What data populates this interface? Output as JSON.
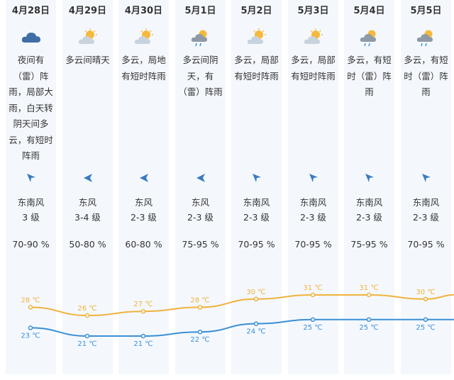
{
  "days": [
    {
      "date": "4月28日",
      "icon": "thunder-cloud-icon",
      "desc": "夜间有（雷）阵雨，局部大雨，白天转阴天间多云，有短时阵雨",
      "wind_dir": "东南风",
      "wind_level": "3 级",
      "humidity": "70-90 %",
      "high": "28 ℃",
      "low": "23 ℃"
    },
    {
      "date": "4月29日",
      "icon": "partly-cloudy-icon",
      "desc": "多云间晴天",
      "wind_dir": "东风",
      "wind_level": "3-4 级",
      "humidity": "50-80 %",
      "high": "26 ℃",
      "low": "21 ℃"
    },
    {
      "date": "4月30日",
      "icon": "partly-cloudy-icon",
      "desc": "多云，局地有短时阵雨",
      "wind_dir": "东风",
      "wind_level": "2-3 级",
      "humidity": "60-80 %",
      "high": "27 ℃",
      "low": "21 ℃"
    },
    {
      "date": "5月1日",
      "icon": "thunder-shower-icon",
      "desc": "多云间阴天，有（雷）阵雨",
      "wind_dir": "东风",
      "wind_level": "2-3 级",
      "humidity": "75-95 %",
      "high": "28 ℃",
      "low": "22 ℃"
    },
    {
      "date": "5月2日",
      "icon": "partly-cloudy-icon",
      "desc": "多云，局部有短时阵雨",
      "wind_dir": "东南风",
      "wind_level": "2-3 级",
      "humidity": "70-95 %",
      "high": "30 ℃",
      "low": "24 ℃"
    },
    {
      "date": "5月3日",
      "icon": "partly-cloudy-icon",
      "desc": "多云，局部有短时阵雨",
      "wind_dir": "东南风",
      "wind_level": "2-3 级",
      "humidity": "70-95 %",
      "high": "31 ℃",
      "low": "25 ℃"
    },
    {
      "date": "5月4日",
      "icon": "thunder-shower-icon",
      "desc": "多云，有短时（雷）阵雨",
      "wind_dir": "东南风",
      "wind_level": "2-3 级",
      "humidity": "75-95 %",
      "high": "31 ℃",
      "low": "25 ℃"
    },
    {
      "date": "5月5日",
      "icon": "thunder-shower-icon",
      "desc": "多云，有短时（雷）阵雨",
      "wind_dir": "东南风",
      "wind_level": "2-3 级",
      "humidity": "70-95 %",
      "high": "30 ℃",
      "low": "25 ℃"
    }
  ],
  "temperature": {
    "high": [
      28,
      26,
      27,
      28,
      30,
      31,
      31,
      30
    ],
    "low": [
      23,
      21,
      21,
      22,
      24,
      25,
      25,
      25
    ],
    "unit": "℃",
    "high_color": "#f0b23c",
    "low_color": "#3b8fd4"
  },
  "colors": {
    "column_bg": "#f4f8fd",
    "cloud_dark": "#3f6ea5",
    "sun": "#f6b93b",
    "arrow": "#3b7bbf"
  }
}
